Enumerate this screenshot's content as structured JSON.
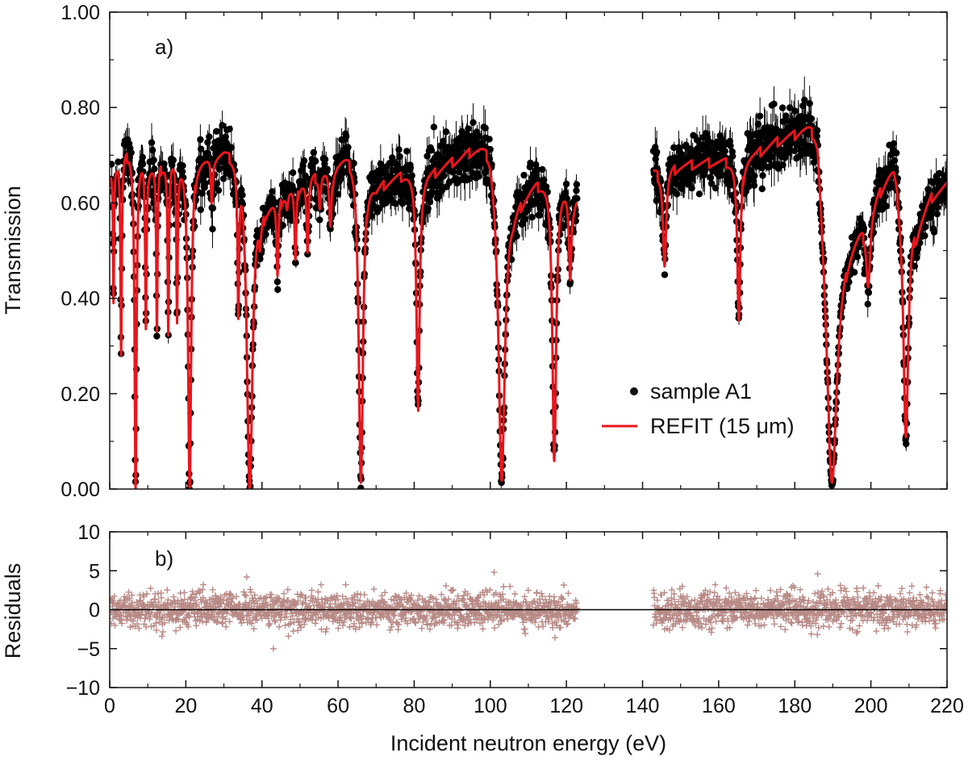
{
  "chart_data": [
    {
      "panel_label": "a)",
      "type": "scatter",
      "xlabel": "",
      "ylabel": "Transmission",
      "xlim": [
        0,
        220
      ],
      "ylim": [
        0,
        1.0
      ],
      "x_ticks": [
        "0",
        "20",
        "40",
        "60",
        "80",
        "100",
        "120",
        "140",
        "160",
        "180",
        "200",
        "220"
      ],
      "y_ticks": [
        "0.00",
        "0.20",
        "0.40",
        "0.60",
        "0.80",
        "1.00"
      ],
      "legend_position": "right-center",
      "colors": {
        "data": "#000000",
        "fit": "#e8161d"
      },
      "series": [
        {
          "name": "sample A1",
          "style": "points-with-errorbars",
          "segments": [
            [
              0.3,
              122.8
            ],
            [
              142.8,
              220
            ]
          ],
          "baseline": [
            [
              0.5,
              0.68
            ],
            [
              5,
              0.72
            ],
            [
              10,
              0.68
            ],
            [
              20,
              0.71
            ],
            [
              26,
              0.7
            ],
            [
              30,
              0.72
            ],
            [
              35,
              0.72
            ],
            [
              40,
              0.6
            ],
            [
              50,
              0.65
            ],
            [
              58,
              0.68
            ],
            [
              65,
              0.73
            ],
            [
              70,
              0.64
            ],
            [
              78,
              0.67
            ],
            [
              85,
              0.67
            ],
            [
              92,
              0.7
            ],
            [
              100,
              0.75
            ],
            [
              106,
              0.6
            ],
            [
              112,
              0.65
            ],
            [
              117,
              0.67
            ],
            [
              122,
              0.62
            ],
            [
              143,
              0.67
            ],
            [
              150,
              0.68
            ],
            [
              160,
              0.69
            ],
            [
              170,
              0.71
            ],
            [
              180,
              0.76
            ],
            [
              186,
              0.82
            ],
            [
              189,
              0.5
            ],
            [
              192,
              0.5
            ],
            [
              198,
              0.57
            ],
            [
              206,
              0.7
            ],
            [
              212,
              0.56
            ],
            [
              216,
              0.62
            ],
            [
              220,
              0.64
            ]
          ],
          "dips": [
            [
              1.0,
              0.4,
              0.15
            ],
            [
              3.0,
              0.28,
              0.2
            ],
            [
              6.8,
              0.0,
              0.3
            ],
            [
              9.5,
              0.35,
              0.2
            ],
            [
              12.4,
              0.33,
              0.2
            ],
            [
              15.4,
              0.33,
              0.2
            ],
            [
              17.7,
              0.35,
              0.2
            ],
            [
              21.0,
              0.0,
              0.5
            ],
            [
              26.8,
              0.6,
              0.25
            ],
            [
              33.8,
              0.39,
              0.25
            ],
            [
              36.8,
              0.0,
              0.9
            ],
            [
              39.5,
              0.55,
              0.3
            ],
            [
              44.1,
              0.45,
              0.3
            ],
            [
              46.6,
              0.6,
              0.3
            ],
            [
              48.8,
              0.48,
              0.3
            ],
            [
              52.0,
              0.5,
              0.3
            ],
            [
              55.2,
              0.6,
              0.3
            ],
            [
              58.0,
              0.55,
              0.4
            ],
            [
              66.0,
              0.01,
              0.7
            ],
            [
              81.0,
              0.17,
              0.5
            ],
            [
              103.0,
              0.01,
              1.0
            ],
            [
              116.8,
              0.05,
              0.6
            ],
            [
              121.0,
              0.44,
              0.4
            ],
            [
              145.8,
              0.47,
              0.5
            ],
            [
              165.3,
              0.35,
              0.5
            ],
            [
              189.8,
              0.02,
              1.5
            ],
            [
              199.3,
              0.44,
              0.6
            ],
            [
              209.2,
              0.11,
              0.8
            ]
          ]
        },
        {
          "name": "REFIT (15 μm)",
          "style": "line"
        }
      ]
    },
    {
      "panel_label": "b)",
      "type": "scatter",
      "xlabel": "Incident neutron energy (eV)",
      "ylabel": "Residuals",
      "xlim": [
        0,
        220
      ],
      "ylim": [
        -10,
        10
      ],
      "x_ticks": [
        "0",
        "20",
        "40",
        "60",
        "80",
        "100",
        "120",
        "140",
        "160",
        "180",
        "200",
        "220"
      ],
      "y_ticks": [
        "−10",
        "−5",
        "0",
        "5",
        "10"
      ],
      "colors": {
        "points": "#b88a86",
        "zero_line": "#000000"
      },
      "series": [
        {
          "name": "",
          "style": "plus-markers",
          "segments": [
            [
              0.3,
              122.8
            ],
            [
              142.8,
              220
            ]
          ],
          "spread": 1.1,
          "extremes": [
            [
              36,
              4.2
            ],
            [
              43,
              -5.0
            ],
            [
              101,
              4.8
            ],
            [
              186,
              4.6
            ],
            [
              117,
              -3.6
            ]
          ]
        }
      ]
    }
  ]
}
